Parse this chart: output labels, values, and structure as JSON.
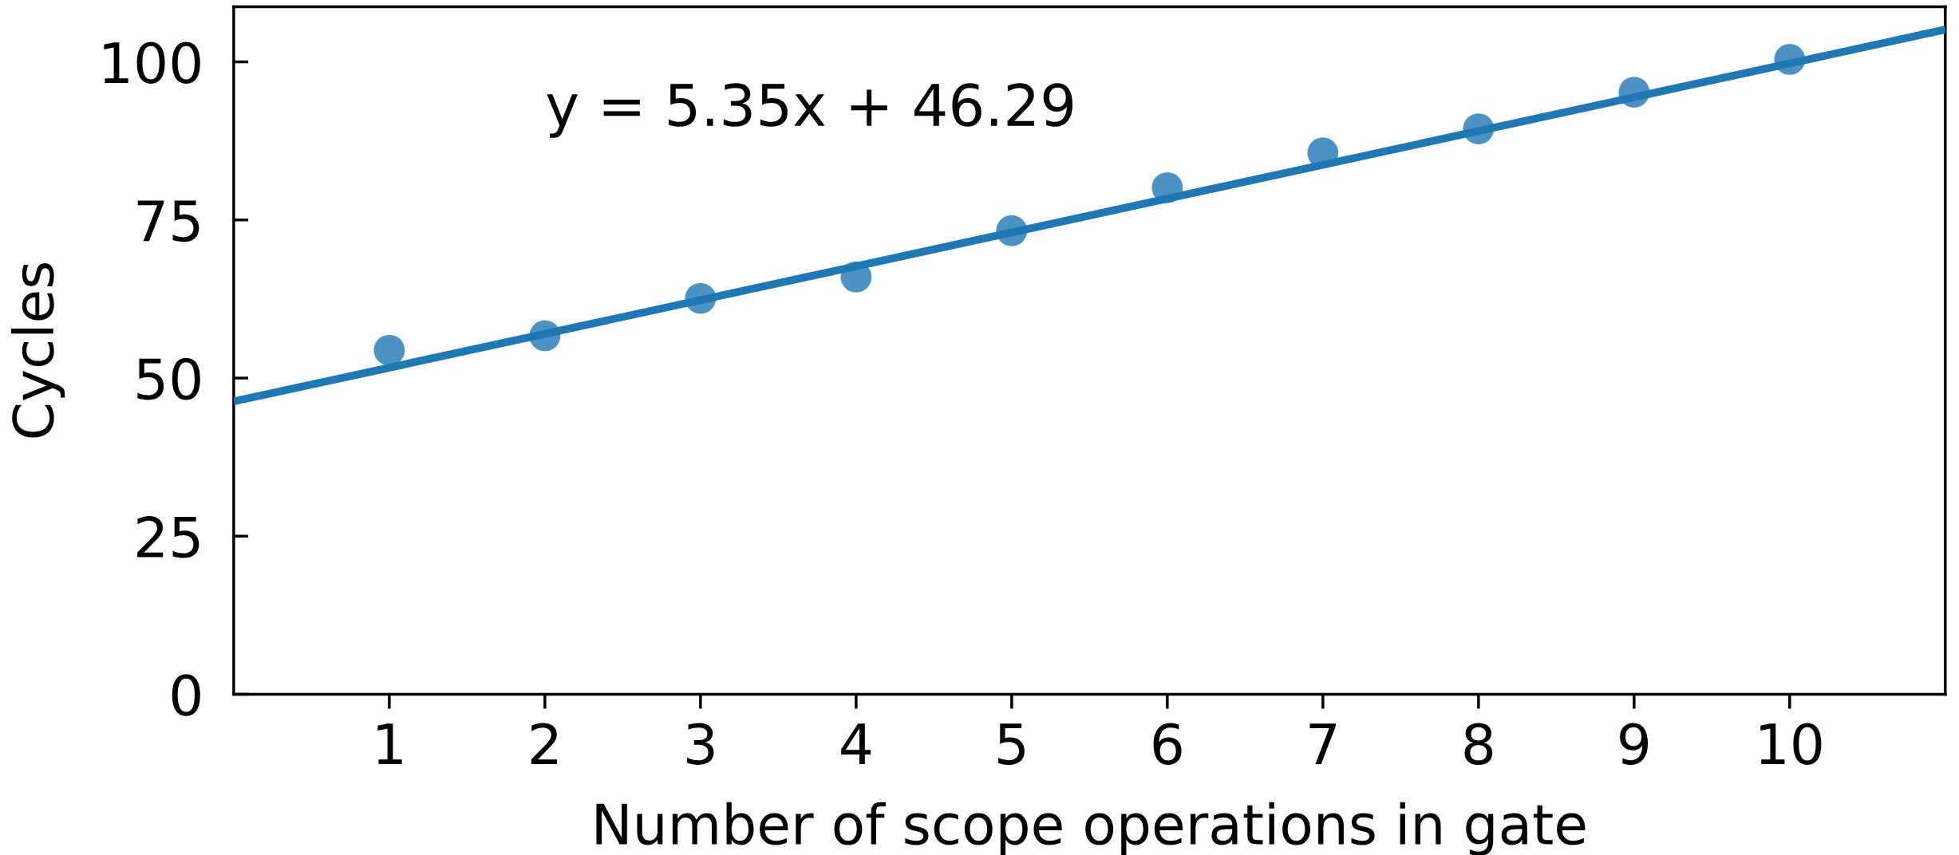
{
  "chart_data": {
    "type": "scatter",
    "xlabel": "Number of scope operations in gate",
    "ylabel": "Cycles",
    "annotations": [
      "y = 5.35x + 46.29"
    ],
    "series": [
      {
        "color": "#4c92c3",
        "marker": "circle",
        "x": [
          1,
          2,
          3,
          4,
          5,
          6,
          7,
          8,
          9,
          10
        ],
        "values": [
          54.4,
          56.7,
          62.6,
          66.0,
          73.3,
          80.1,
          85.6,
          89.4,
          95.2,
          100.4
        ]
      },
      {
        "type": "line",
        "color": "#1f77b4",
        "line_style": "solid",
        "x": [
          0,
          11
        ],
        "values": [
          46.3,
          105.1
        ]
      }
    ],
    "xlim": [
      0,
      11
    ],
    "ylim": [
      0,
      108.7
    ],
    "xticks": [
      1,
      2,
      3,
      4,
      5,
      6,
      7,
      8,
      9,
      10
    ],
    "yticks": [
      0,
      25,
      50,
      75,
      100
    ],
    "grid": false
  }
}
